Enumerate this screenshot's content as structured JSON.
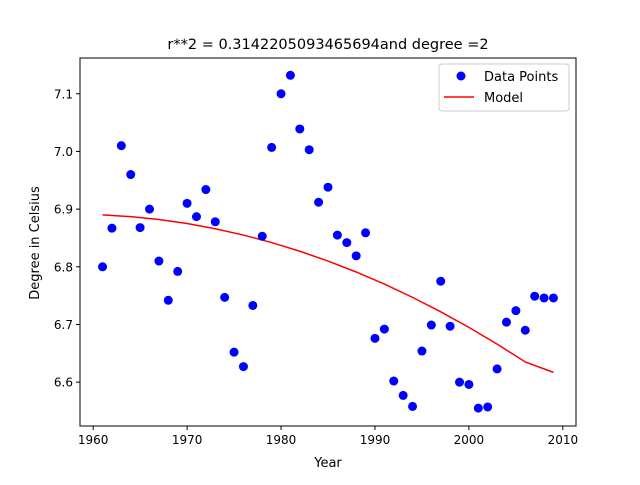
{
  "chart_data": {
    "type": "scatter",
    "title": "r**2 = 0.3142205093465694and degree =2",
    "xlabel": "Year",
    "ylabel": "Degree in Celsius",
    "xlim": [
      1958.6,
      2011.4
    ],
    "ylim": [
      6.524,
      7.162
    ],
    "xticks": [
      1960,
      1970,
      1980,
      1990,
      2000,
      2010
    ],
    "xtick_labels": [
      "1960",
      "1970",
      "1980",
      "1990",
      "2000",
      "2010"
    ],
    "yticks": [
      6.6,
      6.7,
      6.8,
      6.9,
      7.0,
      7.1
    ],
    "ytick_labels": [
      "6.6",
      "6.7",
      "6.8",
      "6.9",
      "7.0",
      "7.1"
    ],
    "grid": false,
    "legend": {
      "placement": "upper-right",
      "entries": [
        "Data Points",
        "Model"
      ]
    },
    "series": [
      {
        "name": "Data Points",
        "kind": "scatter",
        "color": "#0000ff",
        "x": [
          1961,
          1962,
          1963,
          1964,
          1965,
          1966,
          1967,
          1968,
          1969,
          1970,
          1971,
          1972,
          1973,
          1974,
          1975,
          1976,
          1977,
          1978,
          1979,
          1980,
          1981,
          1982,
          1983,
          1984,
          1985,
          1986,
          1987,
          1988,
          1989,
          1990,
          1991,
          1992,
          1993,
          1994,
          1995,
          1996,
          1997,
          1998,
          1999,
          2000,
          2001,
          2002,
          2003,
          2004,
          2005,
          2006,
          2007,
          2008,
          2009
        ],
        "y": [
          6.8,
          6.867,
          7.01,
          6.96,
          6.868,
          6.9,
          6.81,
          6.742,
          6.792,
          6.91,
          6.887,
          6.934,
          6.878,
          6.747,
          6.652,
          6.627,
          6.733,
          6.853,
          7.007,
          7.1,
          7.132,
          7.039,
          7.003,
          6.912,
          6.938,
          6.855,
          6.842,
          6.819,
          6.859,
          6.676,
          6.692,
          6.602,
          6.577,
          6.558,
          6.654,
          6.699,
          6.775,
          6.697,
          6.6,
          6.596,
          6.555,
          6.557,
          6.623,
          6.704,
          6.724,
          6.69,
          6.749,
          6.746,
          6.746
        ]
      },
      {
        "name": "Model",
        "kind": "line",
        "color": "#ff0000",
        "x": [
          1961,
          1964,
          1967,
          1970,
          1973,
          1976,
          1979,
          1982,
          1985,
          1988,
          1991,
          1994,
          1997,
          2000,
          2003,
          2006,
          2009
        ],
        "y": [
          6.89,
          6.887,
          6.882,
          6.875,
          6.866,
          6.855,
          6.842,
          6.827,
          6.81,
          6.791,
          6.77,
          6.747,
          6.722,
          6.695,
          6.666,
          6.635,
          6.617
        ]
      }
    ]
  }
}
